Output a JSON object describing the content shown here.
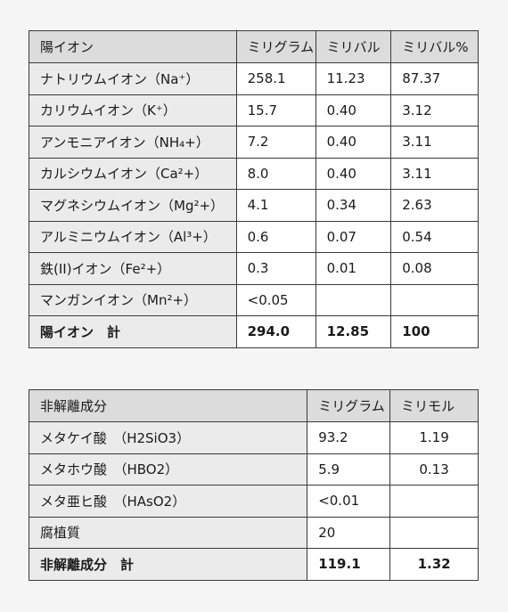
{
  "cations": {
    "headers": [
      "陽イオン",
      "ミリグラム",
      "ミリバル",
      "ミリバル%"
    ],
    "rows": [
      [
        "ナトリウムイオン（Na⁺）",
        "258.1",
        "11.23",
        "87.37"
      ],
      [
        "カリウムイオン（K⁺）",
        "15.7",
        "0.40",
        "3.12"
      ],
      [
        "アンモニアイオン（NH₄+）",
        "7.2",
        "0.40",
        "3.11"
      ],
      [
        "カルシウムイオン（Ca²+）",
        "8.0",
        "0.40",
        "3.11"
      ],
      [
        "マグネシウムイオン（Mg²+）",
        "4.1",
        "0.34",
        "2.63"
      ],
      [
        "アルミニウムイオン（Al³+）",
        "0.6",
        "0.07",
        "0.54"
      ],
      [
        "鉄(II)イオン（Fe²+）",
        "0.3",
        "0.01",
        "0.08"
      ],
      [
        "マンガンイオン（Mn²+）",
        "<0.05",
        "",
        ""
      ]
    ],
    "total": [
      "陽イオン　計",
      "294.0",
      "12.85",
      "100"
    ]
  },
  "nonion": {
    "headers": [
      "非解離成分",
      "ミリグラム",
      "ミリモル"
    ],
    "rows": [
      [
        "メタケイ酸　（H2SiO3）",
        "93.2",
        "1.19"
      ],
      [
        "メタホウ酸　（HBO2）",
        "5.9",
        "0.13"
      ],
      [
        "メタ亜ヒ酸　（HAsO2）",
        "<0.01",
        ""
      ],
      [
        "腐植質",
        "20",
        ""
      ]
    ],
    "total": [
      "非解離成分　計",
      "119.1",
      "1.32"
    ]
  }
}
